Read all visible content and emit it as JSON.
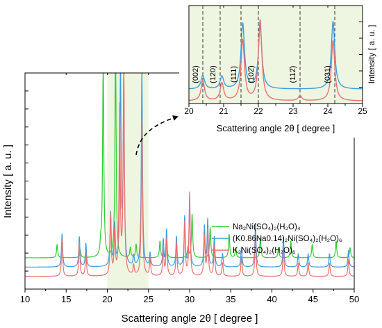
{
  "colors": {
    "na": "#2ecc2e",
    "mixed": "#3b9de0",
    "k": "#ec6f6f",
    "highlight": "#eef6e2"
  },
  "chart_data": [
    {
      "type": "line",
      "xlabel": "Scattering angle 2θ [ degree ]",
      "ylabel": "Intensity [ a. u. ]",
      "xlim": [
        10,
        50
      ],
      "xticks": [
        "10",
        "15",
        "20",
        "25",
        "30",
        "35",
        "40",
        "45",
        "50"
      ],
      "highlight_range": [
        20,
        25
      ],
      "legend_position": "lower-right",
      "series": [
        {
          "name": "Na2Ni(SO4)2(H2O)4",
          "legend_label": "Na₂Ni(SO₄)₂(H₂O)₄",
          "color_key": "na",
          "baseline": 0.94,
          "peaks": [
            [
              13.9,
              0.4
            ],
            [
              16.7,
              0.25
            ],
            [
              19.2,
              0.35
            ],
            [
              19.5,
              6.0
            ],
            [
              21.0,
              6.4
            ],
            [
              22.8,
              0.3
            ],
            [
              23.5,
              0.4
            ],
            [
              26.4,
              0.5
            ],
            [
              27.2,
              0.5
            ],
            [
              29.8,
              0.3
            ],
            [
              30.3,
              1.3
            ],
            [
              32.5,
              0.9
            ],
            [
              34.8,
              0.7
            ],
            [
              35.6,
              0.3
            ],
            [
              38.6,
              0.6
            ],
            [
              40.8,
              0.3
            ],
            [
              42.3,
              0.5
            ],
            [
              44.9,
              0.4
            ],
            [
              47.8,
              0.5
            ],
            [
              49.5,
              0.3
            ]
          ]
        },
        {
          "name": "(K0.86Na0.14)2Ni(SO4)2(H2O)6",
          "legend_label": "(K0.86Na0.14)₂Ni(SO₄)₂(H₂O)₆",
          "color_key": "mixed",
          "baseline": 0.66,
          "peaks": [
            [
              14.5,
              1.0
            ],
            [
              16.6,
              0.9
            ],
            [
              17.4,
              0.7
            ],
            [
              20.4,
              1.6
            ],
            [
              20.9,
              1.2
            ],
            [
              21.6,
              6.0
            ],
            [
              22.0,
              5.4
            ],
            [
              23.2,
              0.3
            ],
            [
              24.2,
              6.0
            ],
            [
              25.2,
              0.4
            ],
            [
              26.8,
              0.8
            ],
            [
              27.2,
              1.1
            ],
            [
              28.4,
              0.9
            ],
            [
              29.4,
              1.5
            ],
            [
              30.0,
              2.0
            ],
            [
              31.8,
              1.2
            ],
            [
              32.2,
              1.4
            ],
            [
              33.0,
              0.9
            ],
            [
              34.0,
              0.4
            ],
            [
              36.3,
              0.6
            ],
            [
              38.0,
              1.3
            ],
            [
              41.4,
              0.9
            ],
            [
              43.2,
              0.4
            ],
            [
              44.4,
              0.4
            ],
            [
              47.0,
              0.4
            ],
            [
              49.3,
              0.5
            ]
          ]
        },
        {
          "name": "K2Ni(SO4)2(H2O)6",
          "legend_label": "K₂Ni(SO₄)₂(H₂O)₆",
          "color_key": "k",
          "baseline": 0.38,
          "peaks": [
            [
              14.5,
              1.1
            ],
            [
              16.6,
              1.0
            ],
            [
              17.4,
              0.7
            ],
            [
              20.4,
              1.8
            ],
            [
              20.9,
              1.3
            ],
            [
              21.5,
              5.0
            ],
            [
              22.0,
              6.5
            ],
            [
              23.2,
              0.3
            ],
            [
              24.2,
              4.7
            ],
            [
              25.2,
              0.5
            ],
            [
              26.8,
              0.8
            ],
            [
              27.2,
              1.1
            ],
            [
              28.4,
              1.0
            ],
            [
              29.4,
              1.6
            ],
            [
              30.0,
              2.5
            ],
            [
              31.8,
              1.2
            ],
            [
              32.2,
              1.4
            ],
            [
              33.0,
              0.9
            ],
            [
              34.0,
              0.4
            ],
            [
              36.3,
              0.6
            ],
            [
              38.0,
              1.3
            ],
            [
              41.4,
              0.9
            ],
            [
              43.2,
              0.4
            ],
            [
              44.4,
              0.4
            ],
            [
              47.0,
              0.4
            ],
            [
              49.3,
              0.5
            ]
          ]
        }
      ]
    },
    {
      "type": "line",
      "xlabel": "Scattering angle 2θ [ degree ]",
      "ylabel": "Intensity [ a. u. ]",
      "xlim": [
        20,
        25
      ],
      "xticks": [
        "20",
        "21",
        "22",
        "23",
        "24",
        "25"
      ],
      "dashed_lines_x": [
        20.4,
        20.9,
        21.5,
        22.0,
        23.2,
        24.2
      ],
      "peak_labels": [
        "(002)",
        "(120)",
        "(111)",
        "(102̄)",
        "(112̄)",
        "(031)"
      ],
      "series": [
        {
          "name": "(K0.86Na0.14)2Ni(SO4)2(H2O)6",
          "color_key": "mixed",
          "baseline": 0.57,
          "peaks": [
            [
              20.4,
              0.55
            ],
            [
              20.95,
              0.5
            ],
            [
              21.55,
              2.6
            ],
            [
              22.05,
              2.5
            ],
            [
              24.15,
              2.7
            ]
          ]
        },
        {
          "name": "K2Ni(SO4)2(H2O)6",
          "color_key": "k",
          "baseline": 0.1,
          "peaks": [
            [
              20.4,
              0.8
            ],
            [
              20.95,
              0.7
            ],
            [
              21.55,
              2.4
            ],
            [
              22.05,
              3.2
            ],
            [
              23.2,
              0.2
            ],
            [
              24.15,
              2.4
            ]
          ]
        }
      ]
    }
  ]
}
